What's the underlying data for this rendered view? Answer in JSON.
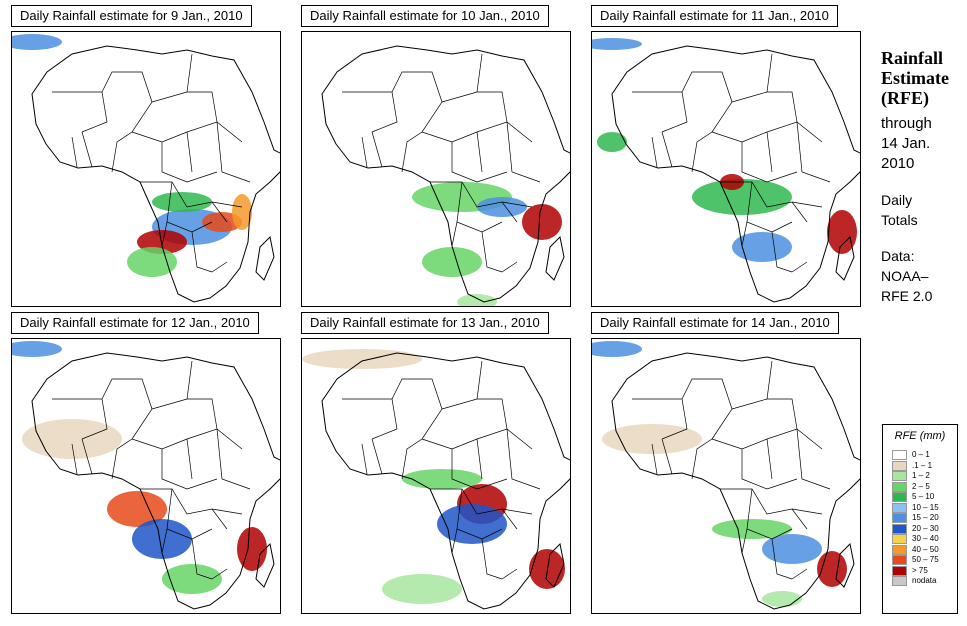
{
  "panels": [
    {
      "title": "Daily Rainfall estimate for  9 Jan., 2010"
    },
    {
      "title": "Daily Rainfall estimate for  10 Jan., 2010"
    },
    {
      "title": "Daily Rainfall estimate for  11 Jan., 2010"
    },
    {
      "title": "Daily Rainfall estimate for  12 Jan., 2010"
    },
    {
      "title": "Daily Rainfall estimate for  13 Jan., 2010"
    },
    {
      "title": "Daily Rainfall estimate for  14 Jan., 2010"
    }
  ],
  "sidebar": {
    "title_line1": "Rainfall",
    "title_line2": "Estimate",
    "title_line3": "(RFE)",
    "through": "through",
    "date_line1": "14 Jan.",
    "date_line2": "2010",
    "daily_line1": "Daily",
    "daily_line2": "Totals",
    "data_line1": "Data:",
    "data_line2": "NOAA–",
    "data_line3": "RFE 2.0"
  },
  "legend": {
    "title": "RFE (mm)",
    "items": [
      {
        "label": "0 – 1",
        "color": "#ffffff"
      },
      {
        "label": ".1 – 1",
        "color": "#e8d7be"
      },
      {
        "label": "1 – 2",
        "color": "#a8e6a0"
      },
      {
        "label": "2 – 5",
        "color": "#66d466"
      },
      {
        "label": "5 – 10",
        "color": "#2fb84f"
      },
      {
        "label": "10 – 15",
        "color": "#8ec0ee"
      },
      {
        "label": "15 – 20",
        "color": "#4e8fe0"
      },
      {
        "label": "20 – 30",
        "color": "#1f56c8"
      },
      {
        "label": "30 – 40",
        "color": "#f5d44a"
      },
      {
        "label": "40 – 50",
        "color": "#f59a2a"
      },
      {
        "label": "50 – 75",
        "color": "#e84a1a"
      },
      {
        "label": "> 75",
        "color": "#b00000"
      },
      {
        "label": "nodata",
        "color": "#c8c8c8"
      }
    ]
  }
}
